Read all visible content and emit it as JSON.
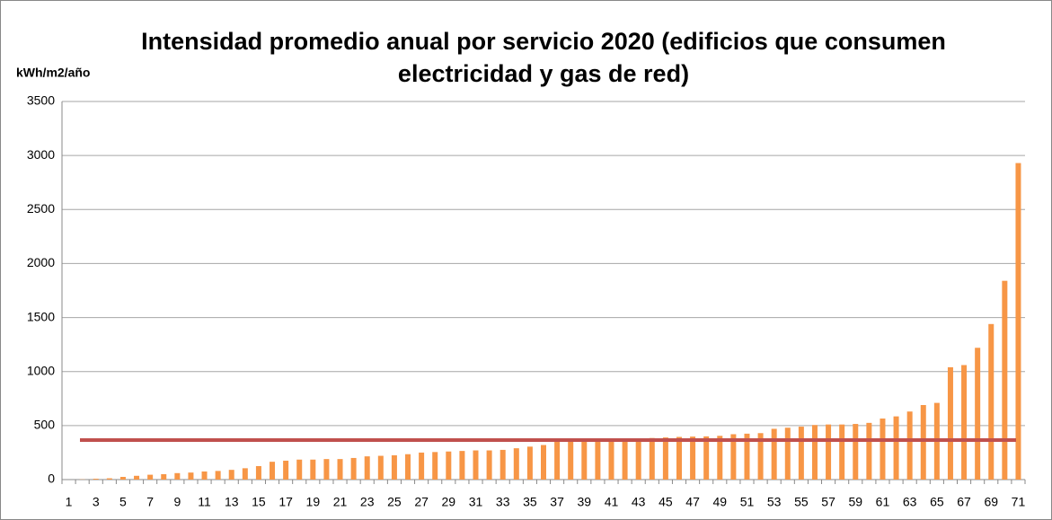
{
  "chart_data": {
    "type": "bar",
    "title": "Intensidad promedio anual por servicio 2020 (edificios que consumen electricidad y gas de red)",
    "y_label": "kWh/m2/año",
    "categories": [
      1,
      null,
      3,
      null,
      5,
      null,
      7,
      null,
      9,
      null,
      11,
      null,
      13,
      null,
      15,
      null,
      17,
      null,
      19,
      null,
      21,
      null,
      23,
      null,
      25,
      null,
      27,
      null,
      29,
      null,
      31,
      null,
      33,
      null,
      35,
      null,
      37,
      null,
      39,
      null,
      41,
      null,
      43,
      null,
      45,
      null,
      47,
      null,
      49,
      null,
      51,
      null,
      53,
      null,
      55,
      null,
      57,
      null,
      59,
      null,
      61,
      null,
      63,
      null,
      65,
      null,
      67,
      null,
      69,
      null,
      71
    ],
    "values": [
      0,
      2,
      8,
      12,
      25,
      35,
      45,
      50,
      60,
      65,
      75,
      80,
      90,
      105,
      125,
      165,
      175,
      185,
      185,
      190,
      190,
      200,
      215,
      220,
      225,
      235,
      250,
      255,
      260,
      265,
      270,
      270,
      275,
      290,
      305,
      320,
      350,
      360,
      365,
      370,
      375,
      378,
      380,
      385,
      390,
      395,
      398,
      400,
      405,
      420,
      425,
      430,
      470,
      480,
      490,
      505,
      510,
      510,
      515,
      525,
      565,
      585,
      630,
      690,
      710,
      1040,
      1060,
      1220,
      1440,
      1840,
      2930
    ],
    "color": "#f79646",
    "reference_line": {
      "value": 366,
      "color": "#c0504d"
    },
    "ylim": [
      0,
      3500
    ],
    "yticks": [
      0,
      500,
      1000,
      1500,
      2000,
      2500,
      3000,
      3500
    ],
    "grid": true
  }
}
